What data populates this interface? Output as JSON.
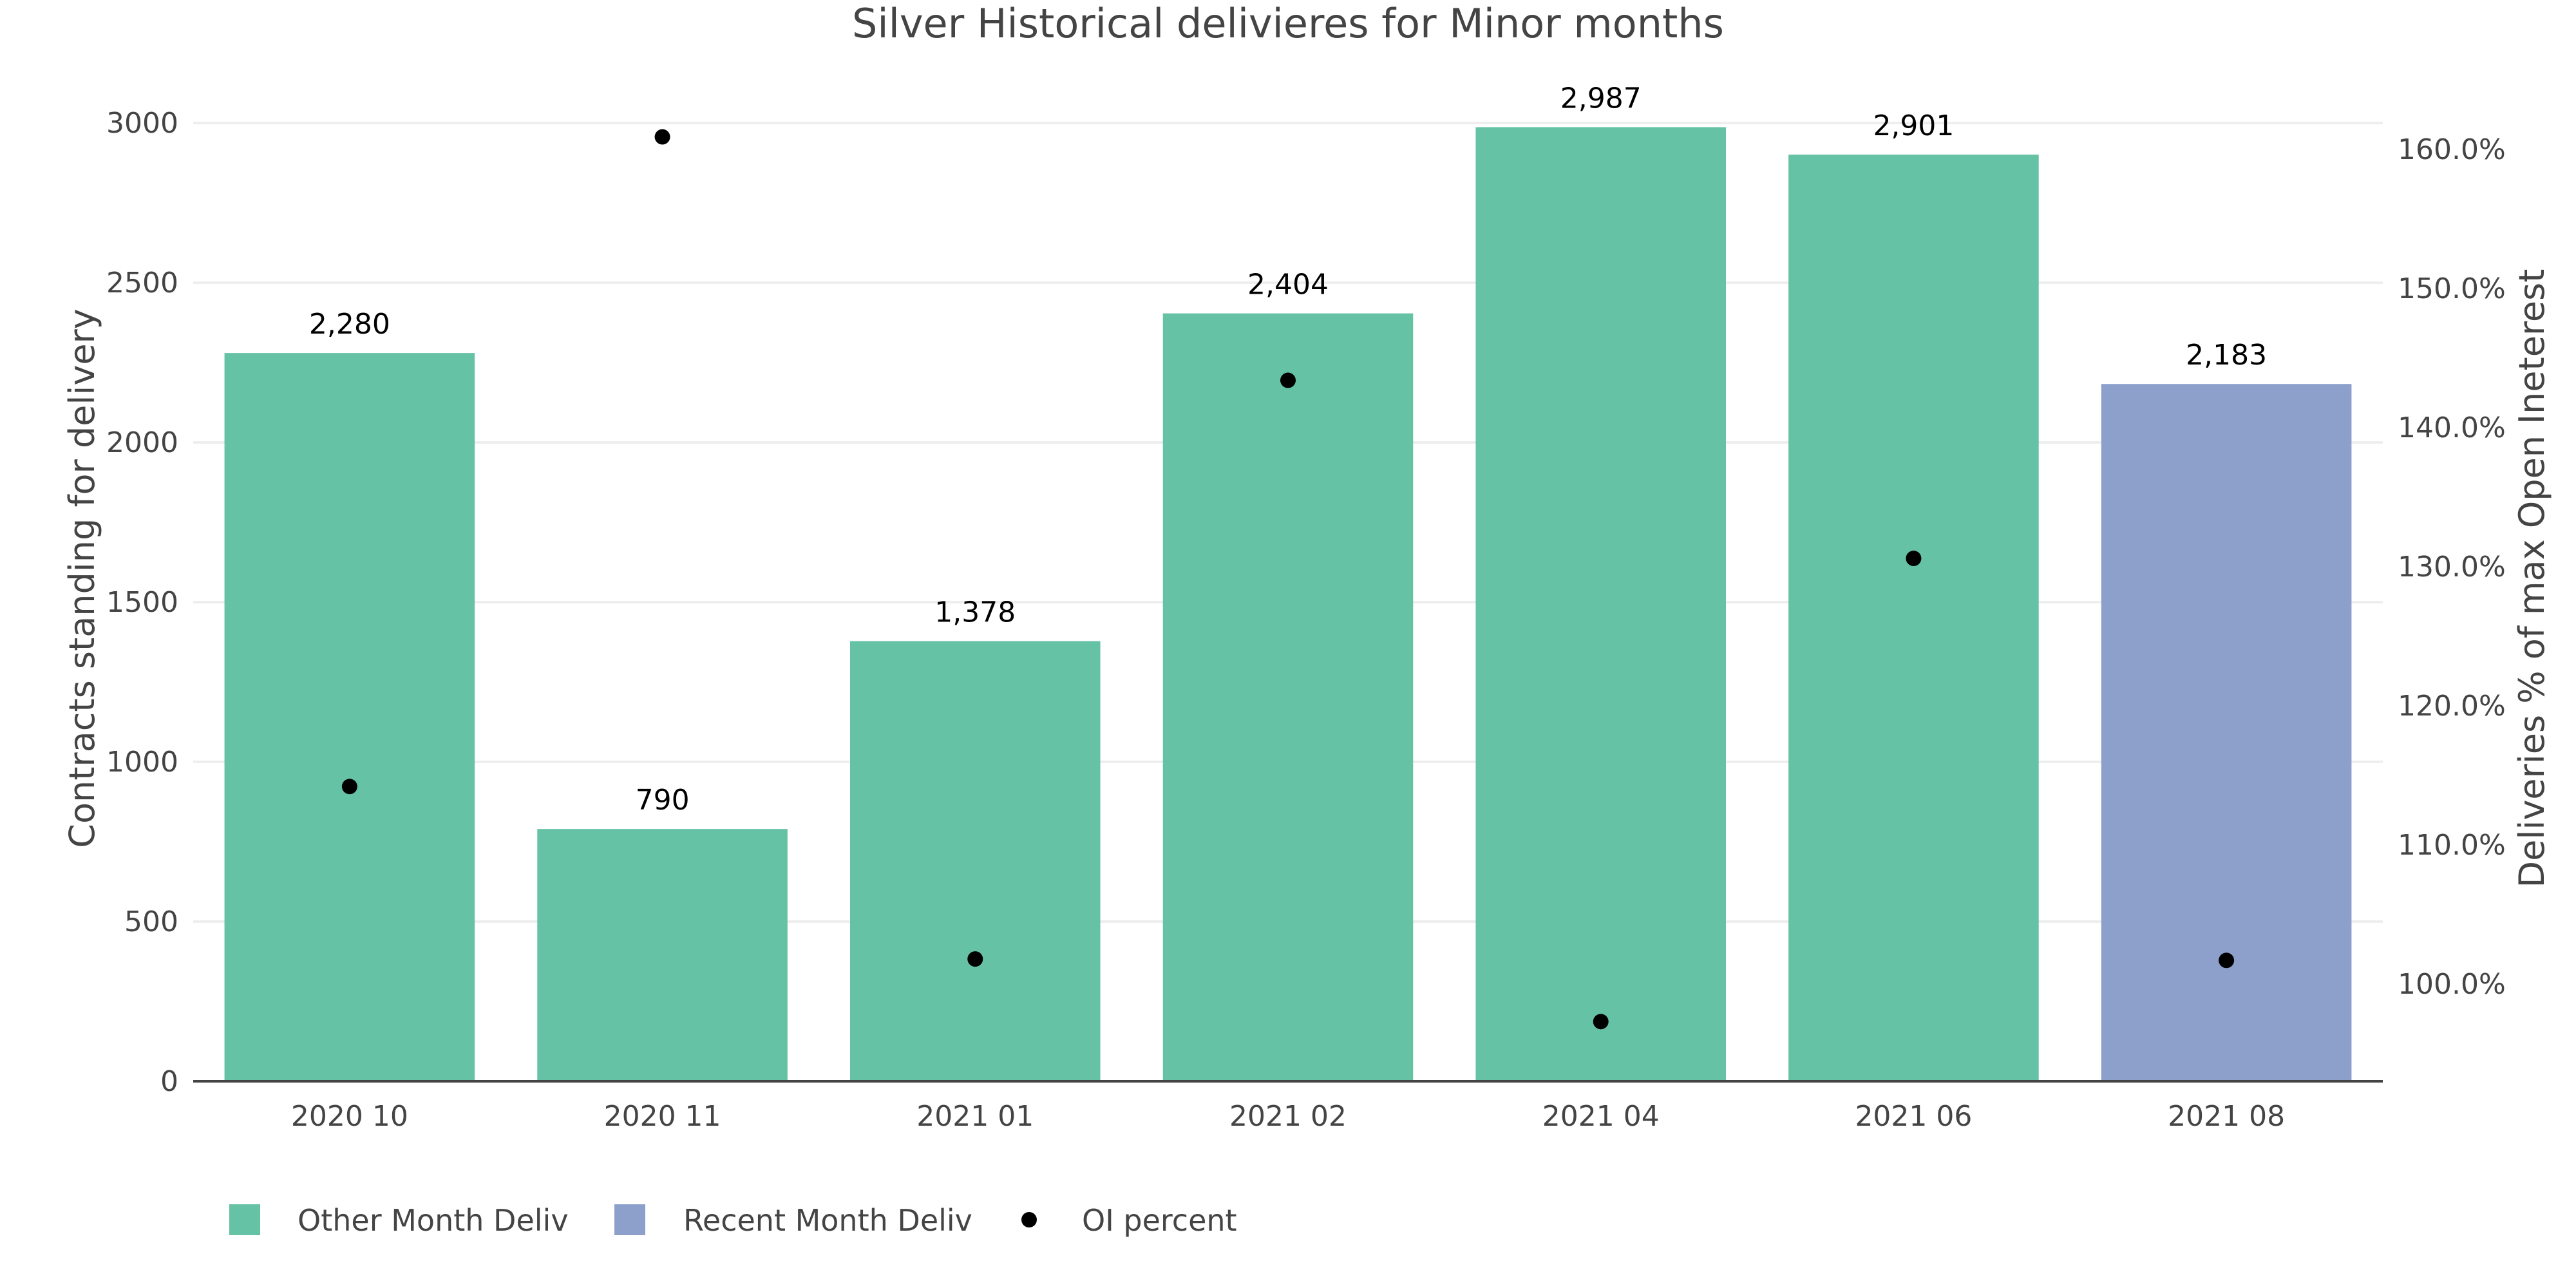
{
  "chart_data": {
    "type": "bar",
    "title": "Silver Historical delivieres for Minor months",
    "categories": [
      "2020 10",
      "2020 11",
      "2021 01",
      "2021 02",
      "2021 04",
      "2021 06",
      "2021 08"
    ],
    "ylabel": "Contracts standing for delivery",
    "y2label": "Deliveries % of max Open Ineterest",
    "ylim": [
      0,
      3000
    ],
    "yticks": [
      0,
      500,
      1000,
      1500,
      2000,
      2500,
      3000
    ],
    "ytick_labels": [
      "0",
      "500",
      "1000",
      "1500",
      "2000",
      "2500",
      "3000"
    ],
    "y2ticks": [
      100,
      110,
      120,
      130,
      140,
      150,
      160
    ],
    "y2tick_labels": [
      "100.0%",
      "110.0%",
      "120.0%",
      "130.0%",
      "140.0%",
      "150.0%",
      "160.0%"
    ],
    "grid": true,
    "legend_position": "bottom-left",
    "series": [
      {
        "name": "Other Month Deliv",
        "type": "bar",
        "axis": "left",
        "color": "#66c2a5",
        "values": [
          2280,
          790,
          1378,
          2404,
          2987,
          2901,
          null
        ],
        "labels": [
          "2,280",
          "790",
          "1,378",
          "2,404",
          "2,987",
          "2,901",
          null
        ]
      },
      {
        "name": "Recent Month Deliv",
        "type": "bar",
        "axis": "left",
        "color": "#8da0cb",
        "values": [
          null,
          null,
          null,
          null,
          null,
          null,
          2183
        ],
        "labels": [
          null,
          null,
          null,
          null,
          null,
          null,
          "2,183"
        ]
      },
      {
        "name": "OI percent",
        "type": "scatter",
        "axis": "right",
        "color": "#000000",
        "values": [
          114.2,
          160.9,
          101.8,
          143.4,
          97.3,
          130.6,
          101.7
        ]
      }
    ]
  }
}
